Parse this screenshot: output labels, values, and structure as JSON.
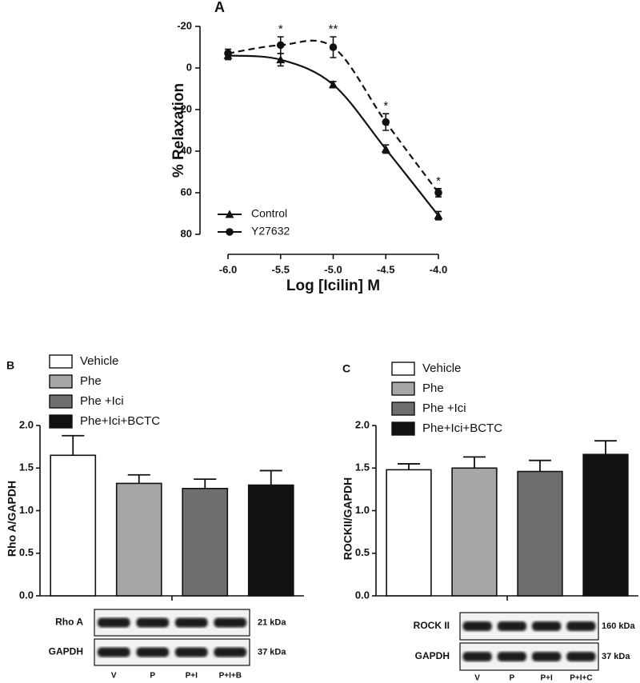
{
  "chart_data": [
    {
      "type": "line",
      "title": "A",
      "xlabel": "Log [Icilin] M",
      "ylabel": "% Relaxation",
      "x": [
        -6,
        -5.5,
        -5,
        -4.5,
        -4
      ],
      "xlim": [
        -6,
        -4
      ],
      "xticks": [
        {
          "value": -6,
          "label": "-6.0"
        },
        -5.5,
        {
          "value": -5,
          "label": "-5.0"
        },
        -4.5,
        {
          "value": -4,
          "label": "-4.0"
        }
      ],
      "ylim": [
        80,
        -20
      ],
      "yticks": [
        -20,
        0,
        20,
        40,
        60,
        80
      ],
      "legend": "lower left",
      "series": [
        {
          "name": "Control",
          "color": "#111111",
          "marker": "triangle",
          "line_style": "solid",
          "values": [
            -6,
            -4,
            8,
            39,
            71
          ],
          "errors": [
            2,
            3,
            1.5,
            2,
            2
          ]
        },
        {
          "name": "Y27632",
          "color": "#111111",
          "marker": "circle",
          "line_style": "dashed",
          "values": [
            -7,
            -11,
            -10,
            26,
            60
          ],
          "errors": [
            2,
            4,
            5,
            4,
            2
          ]
        }
      ],
      "annotations": [
        {
          "x": -5.5,
          "text": "*"
        },
        {
          "x": -5,
          "text": "**"
        },
        {
          "x": -4.5,
          "text": "*"
        },
        {
          "x": -4,
          "text": "*"
        }
      ]
    },
    {
      "type": "bar",
      "title": "B",
      "ylabel": "Rho A/GAPDH",
      "categories": [
        "Vehicle",
        "Phe",
        "Phe +Ici",
        "Phe+Ici+BCTC"
      ],
      "colors": [
        "#ffffff",
        "#a6a6a6",
        "#6e6e6e",
        "#111111"
      ],
      "values": [
        1.65,
        1.32,
        1.26,
        1.3
      ],
      "errors": [
        0.23,
        0.1,
        0.11,
        0.17
      ],
      "ylim": [
        0,
        2
      ],
      "yticks": [
        {
          "value": 0,
          "label": "0.0"
        },
        {
          "value": 0.5,
          "label": "0.5"
        },
        {
          "value": 1,
          "label": "1.0"
        },
        {
          "value": 1.5,
          "label": "1.5"
        },
        {
          "value": 2,
          "label": "2.0"
        }
      ],
      "legend": "upper left",
      "blot": {
        "lanes": [
          "V",
          "P",
          "P+I",
          "P+I+B"
        ],
        "bands": [
          {
            "label": "Rho A",
            "size": "21 kDa"
          },
          {
            "label": "GAPDH",
            "size": "37 kDa"
          }
        ]
      }
    },
    {
      "type": "bar",
      "title": "C",
      "ylabel": "ROCKII/GAPDH",
      "categories": [
        "Vehicle",
        "Phe",
        "Phe +Ici",
        "Phe+Ici+BCTC"
      ],
      "colors": [
        "#ffffff",
        "#a6a6a6",
        "#6e6e6e",
        "#111111"
      ],
      "values": [
        1.48,
        1.5,
        1.46,
        1.66
      ],
      "errors": [
        0.07,
        0.13,
        0.13,
        0.16
      ],
      "ylim": [
        0,
        2
      ],
      "yticks": [
        {
          "value": 0,
          "label": "0.0"
        },
        {
          "value": 0.5,
          "label": "0.5"
        },
        {
          "value": 1,
          "label": "1.0"
        },
        {
          "value": 1.5,
          "label": "1.5"
        },
        {
          "value": 2,
          "label": "2.0"
        }
      ],
      "legend": "upper left",
      "blot": {
        "lanes": [
          "V",
          "P",
          "P+I",
          "P+I+C"
        ],
        "bands": [
          {
            "label": "ROCK II",
            "size": "160 kDa"
          },
          {
            "label": "GAPDH",
            "size": "37 kDa"
          }
        ]
      }
    }
  ]
}
